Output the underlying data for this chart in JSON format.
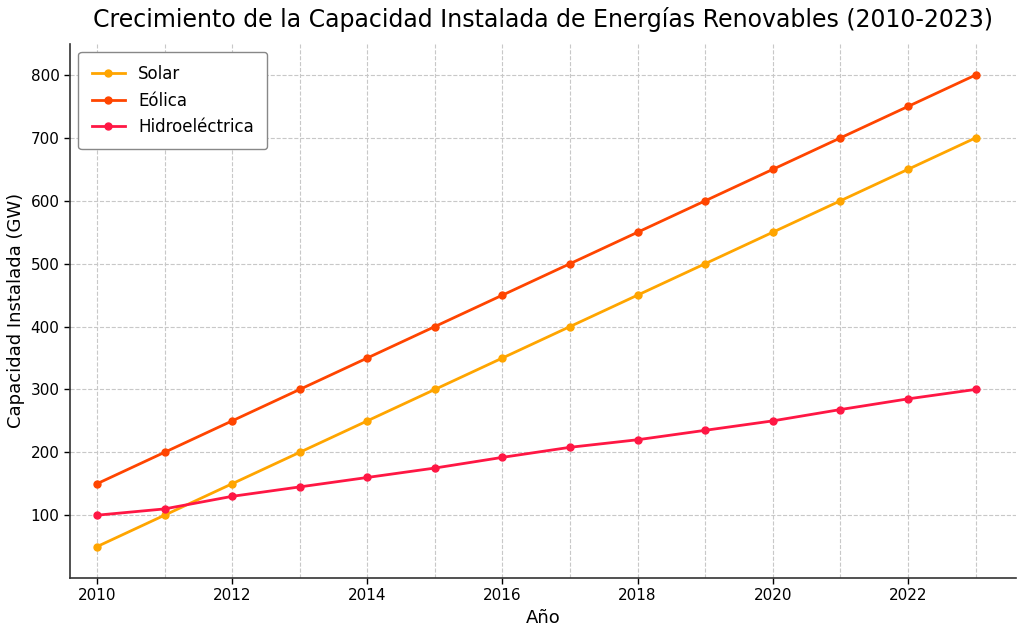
{
  "title": "Crecimiento de la Capacidad Instalada de Energías Renovables (2010-2023)",
  "xlabel": "Año",
  "ylabel": "Capacidad Instalada (GW)",
  "years": [
    2010,
    2011,
    2012,
    2013,
    2014,
    2015,
    2016,
    2017,
    2018,
    2019,
    2020,
    2021,
    2022,
    2023
  ],
  "solar": [
    50,
    100,
    150,
    200,
    250,
    300,
    350,
    400,
    450,
    500,
    550,
    600,
    650,
    700
  ],
  "eolica": [
    150,
    200,
    250,
    300,
    350,
    400,
    450,
    500,
    550,
    600,
    650,
    700,
    750,
    800
  ],
  "hidroelectrica": [
    100,
    110,
    130,
    145,
    160,
    175,
    192,
    208,
    220,
    235,
    250,
    268,
    285,
    300
  ],
  "solar_color": "#FFA500",
  "eolica_color": "#FF4500",
  "hidro_color": "#FF1744",
  "background_color": "#FFFFFF",
  "grid_color": "#C8C8C8",
  "title_fontsize": 17,
  "label_fontsize": 13,
  "legend_fontsize": 12,
  "ylim": [
    0,
    850
  ],
  "yticks": [
    100,
    200,
    300,
    400,
    500,
    600,
    700,
    800
  ],
  "xticks_major": [
    2010,
    2012,
    2014,
    2016,
    2018,
    2020,
    2022
  ],
  "xticks_all": [
    2010,
    2011,
    2012,
    2013,
    2014,
    2015,
    2016,
    2017,
    2018,
    2019,
    2020,
    2021,
    2022,
    2023
  ],
  "xlim": [
    2009.6,
    2023.6
  ]
}
